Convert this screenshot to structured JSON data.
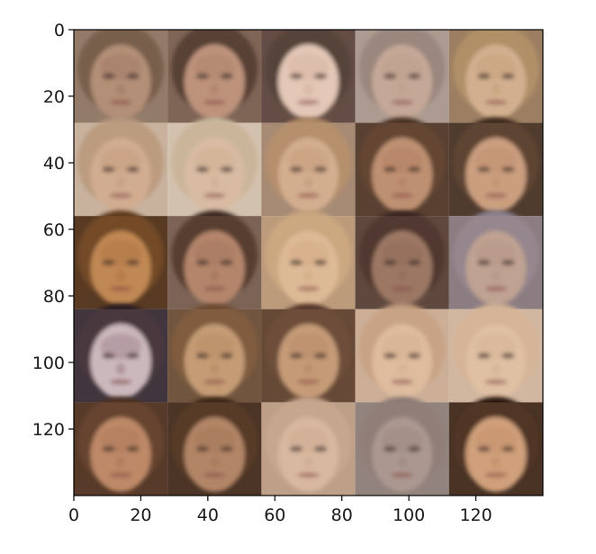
{
  "chart_data": {
    "type": "image",
    "xlim": [
      0,
      140
    ],
    "ylim": [
      140,
      0
    ],
    "x_ticks": [
      "0",
      "20",
      "40",
      "60",
      "80",
      "100",
      "120"
    ],
    "y_ticks": [
      "0",
      "20",
      "40",
      "60",
      "80",
      "100",
      "120"
    ],
    "x_tick_values": [
      0,
      20,
      40,
      60,
      80,
      100,
      120
    ],
    "y_tick_values": [
      0,
      20,
      40,
      60,
      80,
      100,
      120
    ],
    "grid": {
      "rows": 5,
      "cols": 5,
      "tile_size": 28
    },
    "description": "5x5 grid of low-resolution generated human face images"
  },
  "tiles": [
    {
      "row": 0,
      "col": 0,
      "skin": "#b8957c",
      "hair": "#6b5443",
      "bg": "#8e7a6a",
      "tone": "#a57f6a"
    },
    {
      "row": 0,
      "col": 1,
      "skin": "#c39880",
      "hair": "#3a2a22",
      "bg": "#6f5a4e",
      "tone": "#b08670"
    },
    {
      "row": 0,
      "col": 2,
      "skin": "#e8cdbd",
      "hair": "#2a1a16",
      "bg": "#3d2a24",
      "tone": "#d9b7a4"
    },
    {
      "row": 0,
      "col": 3,
      "skin": "#c8aa9a",
      "hair": "#8f7f78",
      "bg": "#a89a92",
      "tone": "#bfa190"
    },
    {
      "row": 0,
      "col": 4,
      "skin": "#d6b595",
      "hair": "#a98a60",
      "bg": "#8e7258",
      "tone": "#c9a480"
    },
    {
      "row": 1,
      "col": 0,
      "skin": "#d4b096",
      "hair": "#b89a7e",
      "bg": "#c8b8a8",
      "tone": "#c9a283"
    },
    {
      "row": 1,
      "col": 1,
      "skin": "#dcc0a8",
      "hair": "#c9b89c",
      "bg": "#d5c8b8",
      "tone": "#d1b095"
    },
    {
      "row": 1,
      "col": 2,
      "skin": "#d7b394",
      "hair": "#b08a66",
      "bg": "#9c8470",
      "tone": "#c8a080"
    },
    {
      "row": 1,
      "col": 3,
      "skin": "#c29577",
      "hair": "#4a3022",
      "bg": "#3a2a20",
      "tone": "#b68466"
    },
    {
      "row": 1,
      "col": 4,
      "skin": "#cfa383",
      "hair": "#3e2a1e",
      "bg": "#2a1e18",
      "tone": "#c19373"
    },
    {
      "row": 2,
      "col": 0,
      "skin": "#c68d58",
      "hair": "#5e3a1e",
      "bg": "#3b2617",
      "tone": "#b27a48"
    },
    {
      "row": 2,
      "col": 1,
      "skin": "#b98a70",
      "hair": "#3d2c24",
      "bg": "#6e5c52",
      "tone": "#a87a60"
    },
    {
      "row": 2,
      "col": 2,
      "skin": "#e1bf9c",
      "hair": "#c9a67f",
      "bg": "#b49577",
      "tone": "#d5ae88"
    },
    {
      "row": 2,
      "col": 3,
      "skin": "#a07c68",
      "hair": "#3a2820",
      "bg": "#4e3c34",
      "tone": "#946e5c"
    },
    {
      "row": 2,
      "col": 4,
      "skin": "#c3a696",
      "hair": "#8b8190",
      "bg": "#7d7480",
      "tone": "#b89888"
    },
    {
      "row": 3,
      "col": 0,
      "skin": "#d8c8cc",
      "hair": "#2a1e22",
      "bg": "#201a22",
      "tone": "#a88c94"
    },
    {
      "row": 3,
      "col": 1,
      "skin": "#c9a07a",
      "hair": "#6e4c32",
      "bg": "#5a4232",
      "tone": "#bb9068"
    },
    {
      "row": 3,
      "col": 2,
      "skin": "#caa07c",
      "hair": "#55382a",
      "bg": "#4a3224",
      "tone": "#ba8e6c"
    },
    {
      "row": 3,
      "col": 3,
      "skin": "#e2c0a2",
      "hair": "#c49f80",
      "bg": "#c8ae98",
      "tone": "#d8b294"
    },
    {
      "row": 3,
      "col": 4,
      "skin": "#e2c4a8",
      "hair": "#d4b498",
      "bg": "#d0b8a4",
      "tone": "#d8b698"
    },
    {
      "row": 4,
      "col": 0,
      "skin": "#c28e6c",
      "hair": "#4e3022",
      "bg": "#3a2418",
      "tone": "#b07c5c"
    },
    {
      "row": 4,
      "col": 1,
      "skin": "#b88a6c",
      "hair": "#3e2818",
      "bg": "#2e1e14",
      "tone": "#a67a5c"
    },
    {
      "row": 4,
      "col": 2,
      "skin": "#dcbca4",
      "hair": "#c4a48c",
      "bg": "#b89a84",
      "tone": "#d0ae96"
    },
    {
      "row": 4,
      "col": 3,
      "skin": "#b09c94",
      "hair": "#8c7a74",
      "bg": "#8e807c",
      "tone": "#a08c84"
    },
    {
      "row": 4,
      "col": 4,
      "skin": "#d4a480",
      "hair": "#2a1810",
      "bg": "#1e120c",
      "tone": "#c6946e"
    }
  ]
}
